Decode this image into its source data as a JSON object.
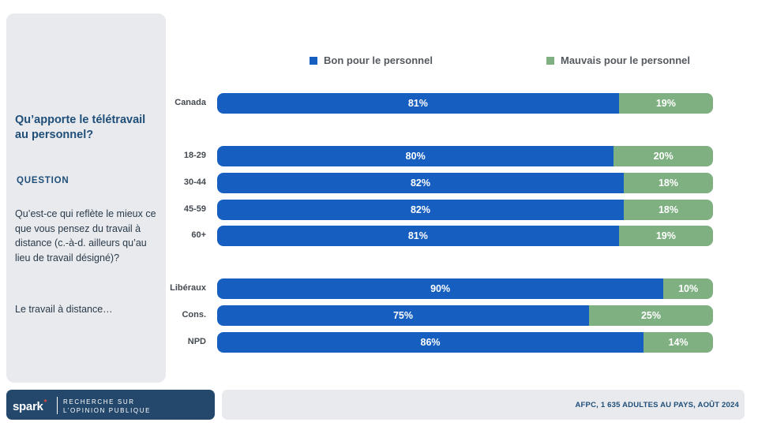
{
  "side": {
    "title": "Qu’apporte le télétravail au personnel?",
    "question_label": "QUESTION",
    "question": "Qu’est-ce qui reflète le mieux ce que vous pensez du travail à distance (c.-à-d. ailleurs qu’au lieu de travail désigné)?",
    "lead": "Le travail à distance…"
  },
  "colors": {
    "good": "#165fc0",
    "bad": "#7fb082",
    "panel": "#e8eaed",
    "brand_bg": "#24486b",
    "accent": "#e34b3c"
  },
  "chart_data": {
    "type": "bar",
    "orientation": "horizontal",
    "stacked": true,
    "normalized_to_100": true,
    "categories": [
      "Canada",
      "18-29",
      "30-44",
      "45-59",
      "60+",
      "Libéraux",
      "Cons.",
      "NPD"
    ],
    "series": [
      {
        "name": "Bon pour le personnel",
        "values": [
          81,
          80,
          82,
          82,
          81,
          90,
          75,
          86
        ],
        "labels": [
          "81%",
          "80%",
          "82%",
          "82%",
          "81%",
          "90%",
          "75%",
          "86%"
        ]
      },
      {
        "name": "Mauvais pour le personnel",
        "values": [
          19,
          20,
          18,
          18,
          19,
          10,
          25,
          14
        ],
        "labels": [
          "19%",
          "20%",
          "18%",
          "18%",
          "19%",
          "10%",
          "25%",
          "14%"
        ]
      }
    ],
    "legend_position": "top",
    "grid": false
  },
  "brand": {
    "name": "spark",
    "star": "*",
    "tag_line1": "RECHERCHE SUR",
    "tag_line2": "L’OPINION PUBLIQUE"
  },
  "footer": "AFPC, 1 635 ADULTES AU PAYS, AOÛT 2024"
}
